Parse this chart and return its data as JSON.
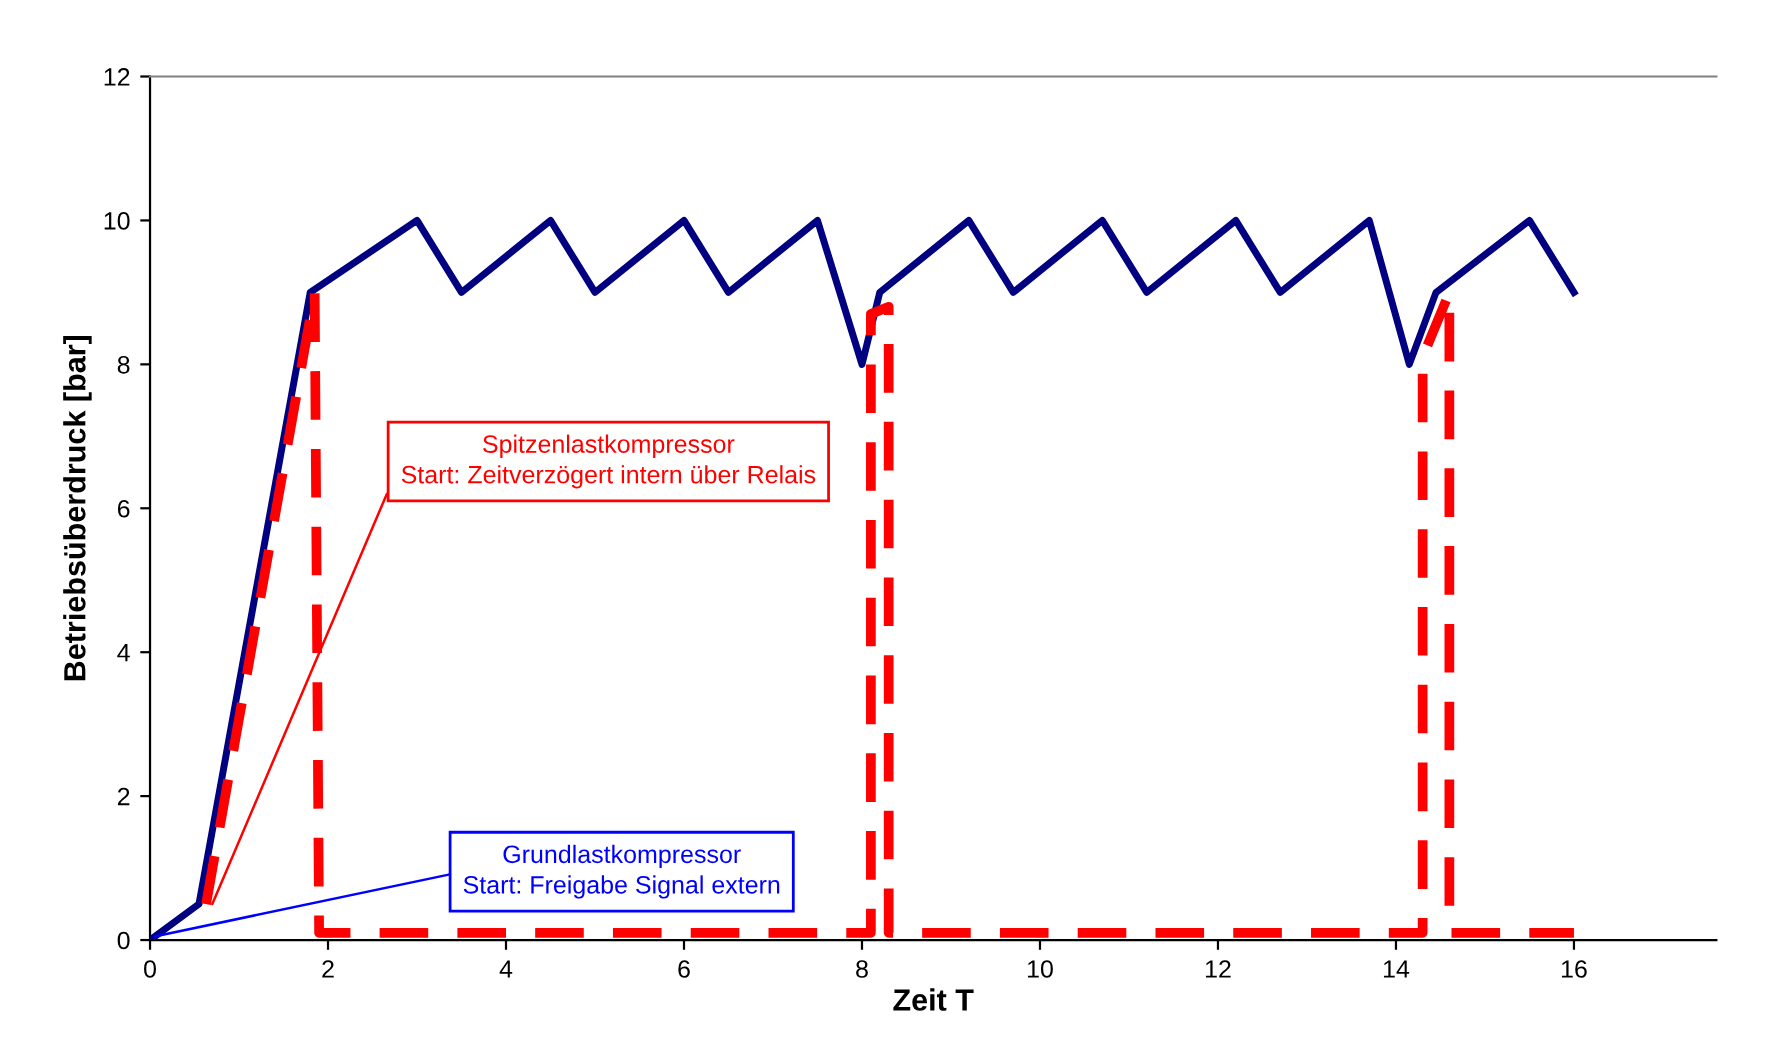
{
  "chart_data": {
    "type": "line",
    "xlabel": "Zeit T",
    "ylabel": "Betriebsüberdruck [bar]",
    "xlim": [
      0,
      17.6
    ],
    "ylim": [
      0,
      12
    ],
    "xticks": [
      0,
      2,
      4,
      6,
      8,
      10,
      12,
      14,
      16
    ],
    "yticks": [
      0,
      2,
      4,
      6,
      8,
      10,
      12
    ],
    "grid": false,
    "legend": false,
    "series": [
      {
        "color": "#000080",
        "line_style": "solid",
        "x": [
          0,
          0.55,
          1.8,
          3.0,
          3.5,
          4.5,
          5.0,
          6.0,
          6.5,
          7.5,
          8.0,
          8.2,
          9.2,
          9.7,
          10.7,
          11.2,
          12.2,
          12.7,
          13.7,
          14.15,
          14.45,
          15.5,
          16
        ],
        "values": [
          0,
          0.5,
          9,
          10,
          9,
          10,
          9,
          10,
          9,
          10,
          8,
          9,
          10,
          9,
          10,
          9,
          10,
          9,
          10,
          8,
          9,
          10,
          9
        ]
      },
      {
        "color": "#ff0000",
        "line_style": "dashed",
        "x": [
          0.63,
          1.85,
          1.9,
          8.1,
          8.1,
          8.3,
          8.3,
          14.3,
          14.3,
          14.6,
          14.6,
          16
        ],
        "values": [
          0.5,
          9,
          0.1,
          0.1,
          8.7,
          8.8,
          0.1,
          0.1,
          8.1,
          9,
          0.1,
          0.1
        ]
      }
    ],
    "annotations": [
      {
        "text": "Spitzenlastkompressor\nStart: Zeitverzögert intern über Relais",
        "x": 0.7,
        "y": 0.5
      },
      {
        "text": "Grundlastkompressor\nStart: Freigabe Signal extern",
        "x": 0.05,
        "y": 0.05
      }
    ]
  }
}
